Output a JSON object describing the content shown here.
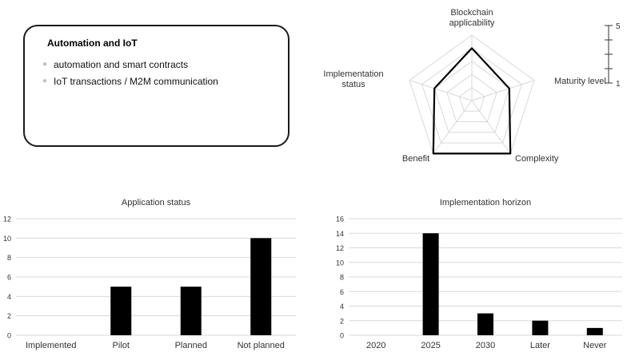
{
  "card": {
    "title": "Automation and IoT",
    "items": [
      "automation and smart contracts",
      "IoT transactions / M2M communication"
    ]
  },
  "colors": {
    "bar": "#000000",
    "grid": "#d9d9d9",
    "text": "#333333",
    "border": "#1a1a1a"
  },
  "chart_data": [
    {
      "type": "radar",
      "axes": [
        "Blockchain applicability",
        "Maturity level",
        "Complexity",
        "Benefit",
        "Implementation status"
      ],
      "axis_label_lines": [
        [
          "Blockchain",
          "applicability"
        ],
        [
          "Maturity level"
        ],
        [
          "Complexity"
        ],
        [
          "Benefit"
        ],
        [
          "Implementation",
          "status"
        ]
      ],
      "values": [
        4,
        3,
        5,
        5,
        3
      ],
      "rmax": 5,
      "scale_ticks": [
        "5",
        "1"
      ]
    },
    {
      "type": "bar",
      "title": "Application status",
      "categories": [
        "Implemented",
        "Pilot",
        "Planned",
        "Not planned"
      ],
      "values": [
        0,
        5,
        5,
        10
      ],
      "ylim": [
        0,
        12
      ],
      "yticks": [
        0,
        2,
        4,
        6,
        8,
        10,
        12
      ],
      "grid": true
    },
    {
      "type": "bar",
      "title": "Implementation horizon",
      "categories": [
        "2020",
        "2025",
        "2030",
        "Later",
        "Never"
      ],
      "values": [
        0,
        14,
        3,
        2,
        1
      ],
      "ylim": [
        0,
        16
      ],
      "yticks": [
        0,
        2,
        4,
        6,
        8,
        10,
        12,
        14,
        16
      ],
      "grid": true
    }
  ]
}
